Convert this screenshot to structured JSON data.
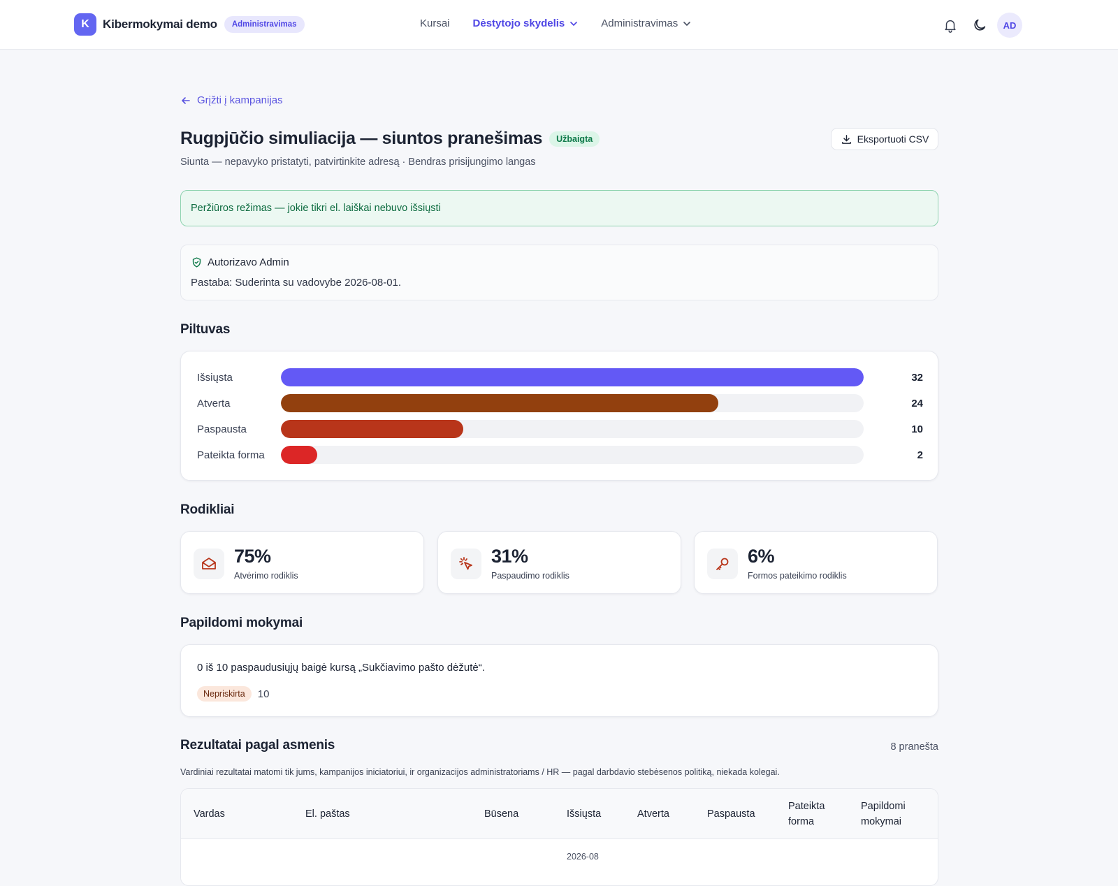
{
  "header": {
    "logo_letter": "K",
    "app_name": "Kibermokymai demo",
    "role_badge": "Administravimas",
    "nav": [
      {
        "label": "Kursai"
      },
      {
        "label": "Dėstytojo skydelis"
      },
      {
        "label": "Administravimas"
      }
    ],
    "avatar_initials": "AD",
    "icons": [
      "bell-icon",
      "moon-icon"
    ]
  },
  "back_link": "Grįžti į kampanijas",
  "campaign": {
    "title": "Rugpjūčio simuliacija — siuntos pranešimas",
    "status": "Užbaigta",
    "subtitle": "Siunta — nepavyko pristatyti, patvirtinkite adresą · Bendras prisijungimo langas",
    "export_label": "Eksportuoti CSV"
  },
  "preview_banner": "Peržiūros režimas — jokie tikri el. laiškai nebuvo išsiųsti",
  "authorization": {
    "line": "Autorizavo Admin",
    "note": "Pastaba: Suderinta su vadovybe 2026-08-01."
  },
  "funnel": {
    "title": "Piltuvas",
    "max": 32,
    "rows": [
      {
        "label": "Išsiųsta",
        "value": 32,
        "count": "32",
        "color": "#6359f5"
      },
      {
        "label": "Atverta",
        "value": 24,
        "count": "24",
        "color": "#92400e"
      },
      {
        "label": "Paspausta",
        "value": 10,
        "count": "10",
        "color": "#b8351a"
      },
      {
        "label": "Pateikta forma",
        "value": 2,
        "count": "2",
        "color": "#dc2626"
      }
    ]
  },
  "metrics": {
    "title": "Rodikliai",
    "items": [
      {
        "value": "75%",
        "label": "Atvėrimo rodiklis",
        "icon": "envelope-open-icon"
      },
      {
        "value": "31%",
        "label": "Paspaudimo rodiklis",
        "icon": "cursor-click-icon"
      },
      {
        "value": "6%",
        "label": "Formos pateikimo rodiklis",
        "icon": "key-icon"
      }
    ]
  },
  "training": {
    "title": "Papildomi mokymai",
    "text": "0 iš 10 paspaudusiųjų baigė kursą „Sukčiavimo pašto dėžutė“.",
    "pill": "Nepriskirta",
    "pill_count": "10"
  },
  "results": {
    "title": "Rezultatai pagal asmenis",
    "count": "8 pranešta",
    "note": "Vardiniai rezultatai matomi tik jums, kampanijos iniciatoriui, ir organizacijos administratoriams / HR — pagal darbdavio stebėsenos politiką, niekada kolegai.",
    "columns": {
      "name": "Vardas",
      "email": "El. paštas",
      "status": "Būsena",
      "sent": "Išsiųsta",
      "opened": "Atverta",
      "clicked": "Paspausta",
      "submitted_1": "Pateikta",
      "submitted_2": "forma",
      "training_1": "Papildomi",
      "training_2": "mokymai"
    },
    "first_row_date_fragment": "2026-08"
  },
  "colors": {
    "accent": "#4f46e5",
    "success": "#0f7a4a"
  }
}
